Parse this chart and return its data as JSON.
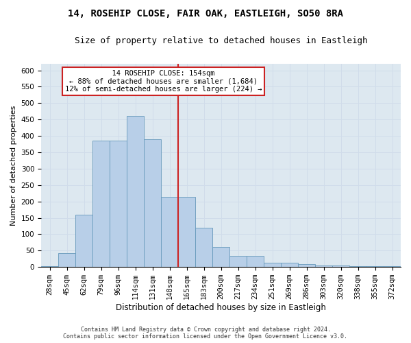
{
  "title_line1": "14, ROSEHIP CLOSE, FAIR OAK, EASTLEIGH, SO50 8RA",
  "title_line2": "Size of property relative to detached houses in Eastleigh",
  "xlabel": "Distribution of detached houses by size in Eastleigh",
  "ylabel": "Number of detached properties",
  "footer_line1": "Contains HM Land Registry data © Crown copyright and database right 2024.",
  "footer_line2": "Contains public sector information licensed under the Open Government Licence v3.0.",
  "annotation_line1": "  14 ROSEHIP CLOSE: 154sqm  ",
  "annotation_line2": "← 88% of detached houses are smaller (1,684)",
  "annotation_line3": "12% of semi-detached houses are larger (224) →",
  "bar_values": [
    3,
    42,
    160,
    385,
    385,
    460,
    390,
    215,
    215,
    120,
    62,
    33,
    33,
    14,
    14,
    9,
    4,
    4,
    3,
    3,
    2
  ],
  "categories": [
    "28sqm",
    "45sqm",
    "62sqm",
    "79sqm",
    "96sqm",
    "114sqm",
    "131sqm",
    "148sqm",
    "165sqm",
    "183sqm",
    "200sqm",
    "217sqm",
    "234sqm",
    "251sqm",
    "269sqm",
    "286sqm",
    "303sqm",
    "320sqm",
    "338sqm",
    "355sqm",
    "372sqm"
  ],
  "bar_color": "#b8cfe8",
  "bar_edge_color": "#6699bb",
  "grid_color": "#d0dcea",
  "background_color": "#dde8f0",
  "vline_color": "#cc2222",
  "annotation_box_facecolor": "#ffffff",
  "annotation_box_edge": "#cc2222",
  "ylim": [
    0,
    620
  ],
  "yticks": [
    0,
    50,
    100,
    150,
    200,
    250,
    300,
    350,
    400,
    450,
    500,
    550,
    600
  ],
  "title_fontsize": 10,
  "subtitle_fontsize": 9,
  "ylabel_fontsize": 8,
  "xlabel_fontsize": 8.5,
  "tick_fontsize": 7.5,
  "footer_fontsize": 6,
  "annot_fontsize": 7.5
}
